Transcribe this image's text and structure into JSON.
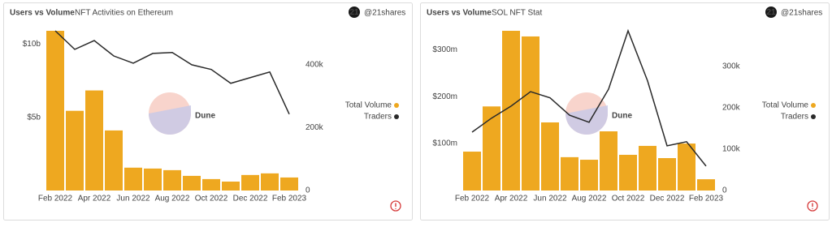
{
  "chart_data": [
    {
      "type": "combo",
      "title": "Users vs Volume",
      "subtitle": "NFT Activities on Ethereum",
      "logo": "21",
      "source": "@21shares",
      "watermark": "Dune",
      "categories": [
        "Feb 2022",
        null,
        "Apr 2022",
        null,
        "Jun 2022",
        null,
        "Aug 2022",
        null,
        "Oct 2022",
        null,
        "Dec 2022",
        null,
        "Feb 2023"
      ],
      "series": [
        {
          "name": "Total Volume",
          "type": "bar",
          "color": "#eea820",
          "values": [
            10900000000,
            5440000000,
            6830000000,
            4100000000,
            1560000000,
            1500000000,
            1390000000,
            1000000000,
            780000000,
            610000000,
            1060000000,
            1170000000,
            890000000
          ]
        },
        {
          "name": "Traders",
          "type": "line",
          "axis": "y2",
          "color": "#2a2a2a",
          "values": [
            508000,
            449000,
            477000,
            428000,
            405000,
            436000,
            439000,
            400000,
            385000,
            341000,
            359000,
            377000,
            243000
          ]
        }
      ],
      "ylim": [
        0,
        10900000000
      ],
      "yticks": [
        {
          "value": 5000000000,
          "label": "$5b"
        },
        {
          "value": 10000000000,
          "label": "$10b"
        }
      ],
      "y2lim": [
        0,
        508000
      ],
      "y2ticks": [
        0,
        {
          "value": 200000,
          "label": "200k"
        },
        {
          "value": 400000,
          "label": "400k"
        }
      ],
      "legend": "right"
    },
    {
      "type": "combo",
      "title": "Users vs Volume",
      "subtitle": "SOL NFT Stat",
      "logo": "21",
      "source": "@21shares",
      "watermark": "Dune",
      "categories": [
        "Feb 2022",
        null,
        "Apr 2022",
        null,
        "Jun 2022",
        null,
        "Aug 2022",
        null,
        "Oct 2022",
        null,
        "Dec 2022",
        null,
        "Feb 2023"
      ],
      "series": [
        {
          "name": "Total Volume",
          "type": "bar",
          "color": "#eea820",
          "values": [
            82800000,
            179000000,
            340000000,
            328000000,
            145000000,
            71000000,
            65500000,
            126000000,
            76000000,
            95000000,
            69000000,
            100000000,
            24000000
          ]
        },
        {
          "name": "Traders",
          "type": "line",
          "axis": "y2",
          "color": "#2a2a2a",
          "values": [
            141000,
            175000,
            204000,
            239000,
            224000,
            182000,
            165000,
            245000,
            386000,
            265000,
            108000,
            118000,
            59000
          ]
        }
      ],
      "ylim": [
        0,
        340000000
      ],
      "yticks": [
        {
          "value": 100000000,
          "label": "$100m"
        },
        {
          "value": 200000000,
          "label": "$200m"
        },
        {
          "value": 300000000,
          "label": "$300m"
        }
      ],
      "y2lim": [
        0,
        386000
      ],
      "y2ticks": [
        0,
        {
          "value": 100000,
          "label": "100k"
        },
        {
          "value": 200000,
          "label": "200k"
        },
        {
          "value": 300000,
          "label": "300k"
        }
      ],
      "legend": "right"
    }
  ]
}
